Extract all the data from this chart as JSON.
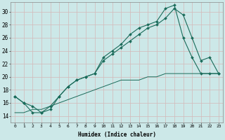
{
  "xlabel": "Humidex (Indice chaleur)",
  "bg_color": "#cce8e8",
  "grid_color": "#b8d4d4",
  "line_color": "#1a6b5a",
  "xlim": [
    -0.5,
    23.5
  ],
  "ylim": [
    13.0,
    31.5
  ],
  "xticks": [
    0,
    1,
    2,
    3,
    4,
    5,
    6,
    7,
    8,
    9,
    10,
    11,
    12,
    13,
    14,
    15,
    16,
    17,
    18,
    19,
    20,
    21,
    22,
    23
  ],
  "yticks": [
    14,
    16,
    18,
    20,
    22,
    24,
    26,
    28,
    30
  ],
  "line1_x": [
    0,
    1,
    2,
    3,
    4,
    5,
    6,
    7,
    8,
    9,
    10,
    11,
    12,
    13,
    14,
    15,
    16,
    17,
    18,
    19,
    20,
    21,
    22,
    23
  ],
  "line1_y": [
    17.0,
    16.0,
    15.5,
    14.5,
    15.5,
    17.0,
    18.5,
    19.5,
    20.0,
    20.5,
    23.0,
    24.0,
    25.0,
    26.5,
    27.5,
    28.0,
    28.5,
    30.5,
    31.0,
    26.0,
    23.0,
    20.5,
    20.5,
    20.5
  ],
  "line2_x": [
    0,
    1,
    2,
    3,
    4,
    5,
    6,
    7,
    8,
    9,
    10,
    11,
    12,
    13,
    14,
    15,
    16,
    17,
    18,
    19,
    20,
    21,
    22,
    23
  ],
  "line2_y": [
    17.0,
    16.0,
    14.5,
    14.5,
    15.0,
    17.0,
    18.5,
    19.5,
    20.0,
    20.5,
    22.5,
    23.5,
    24.5,
    25.5,
    26.5,
    27.5,
    28.0,
    29.0,
    30.5,
    29.5,
    26.0,
    22.5,
    23.0,
    20.5
  ],
  "line3_x": [
    0,
    1,
    2,
    3,
    4,
    5,
    6,
    7,
    8,
    9,
    10,
    11,
    12,
    13,
    14,
    15,
    16,
    17,
    18,
    19,
    20,
    21,
    22,
    23
  ],
  "line3_y": [
    14.5,
    14.5,
    15.0,
    15.0,
    15.5,
    16.0,
    16.5,
    17.0,
    17.5,
    18.0,
    18.5,
    19.0,
    19.5,
    19.5,
    19.5,
    20.0,
    20.0,
    20.5,
    20.5,
    20.5,
    20.5,
    20.5,
    20.5,
    20.5
  ]
}
